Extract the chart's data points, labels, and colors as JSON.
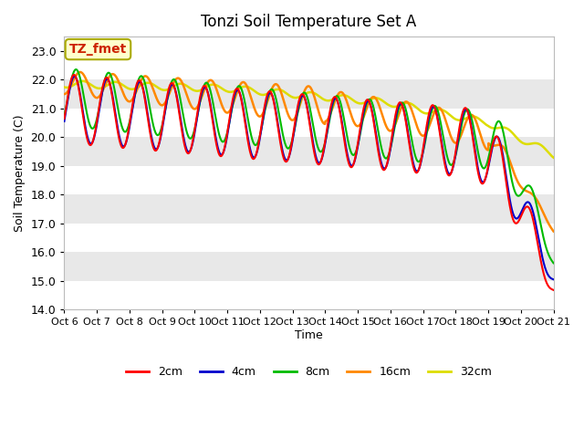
{
  "title": "Tonzi Soil Temperature Set A",
  "ylabel": "Soil Temperature (C)",
  "xlabel": "Time",
  "ylim": [
    14.0,
    23.5
  ],
  "yticks": [
    14.0,
    15.0,
    16.0,
    17.0,
    18.0,
    19.0,
    20.0,
    21.0,
    22.0,
    23.0
  ],
  "colors": {
    "2cm": "#FF0000",
    "4cm": "#0000CC",
    "8cm": "#00BB00",
    "16cm": "#FF8800",
    "32cm": "#DDDD00"
  },
  "annotation_label": "TZ_fmet",
  "annotation_color": "#CC2200",
  "annotation_bg": "#FFFFCC",
  "annotation_edge": "#AAAA00",
  "band_color": "#E8E8E8",
  "x_labels": [
    "Oct 6",
    "Oct 7",
    "Oct 8",
    "Oct 9",
    "Oct 10",
    "Oct 11",
    "Oct 12",
    "Oct 13",
    "Oct 14",
    "Oct 15",
    "Oct 16",
    "Oct 17",
    "Oct 18",
    "Oct 19",
    "Oct 20",
    "Oct 21"
  ],
  "n_points": 1500,
  "days": 15
}
